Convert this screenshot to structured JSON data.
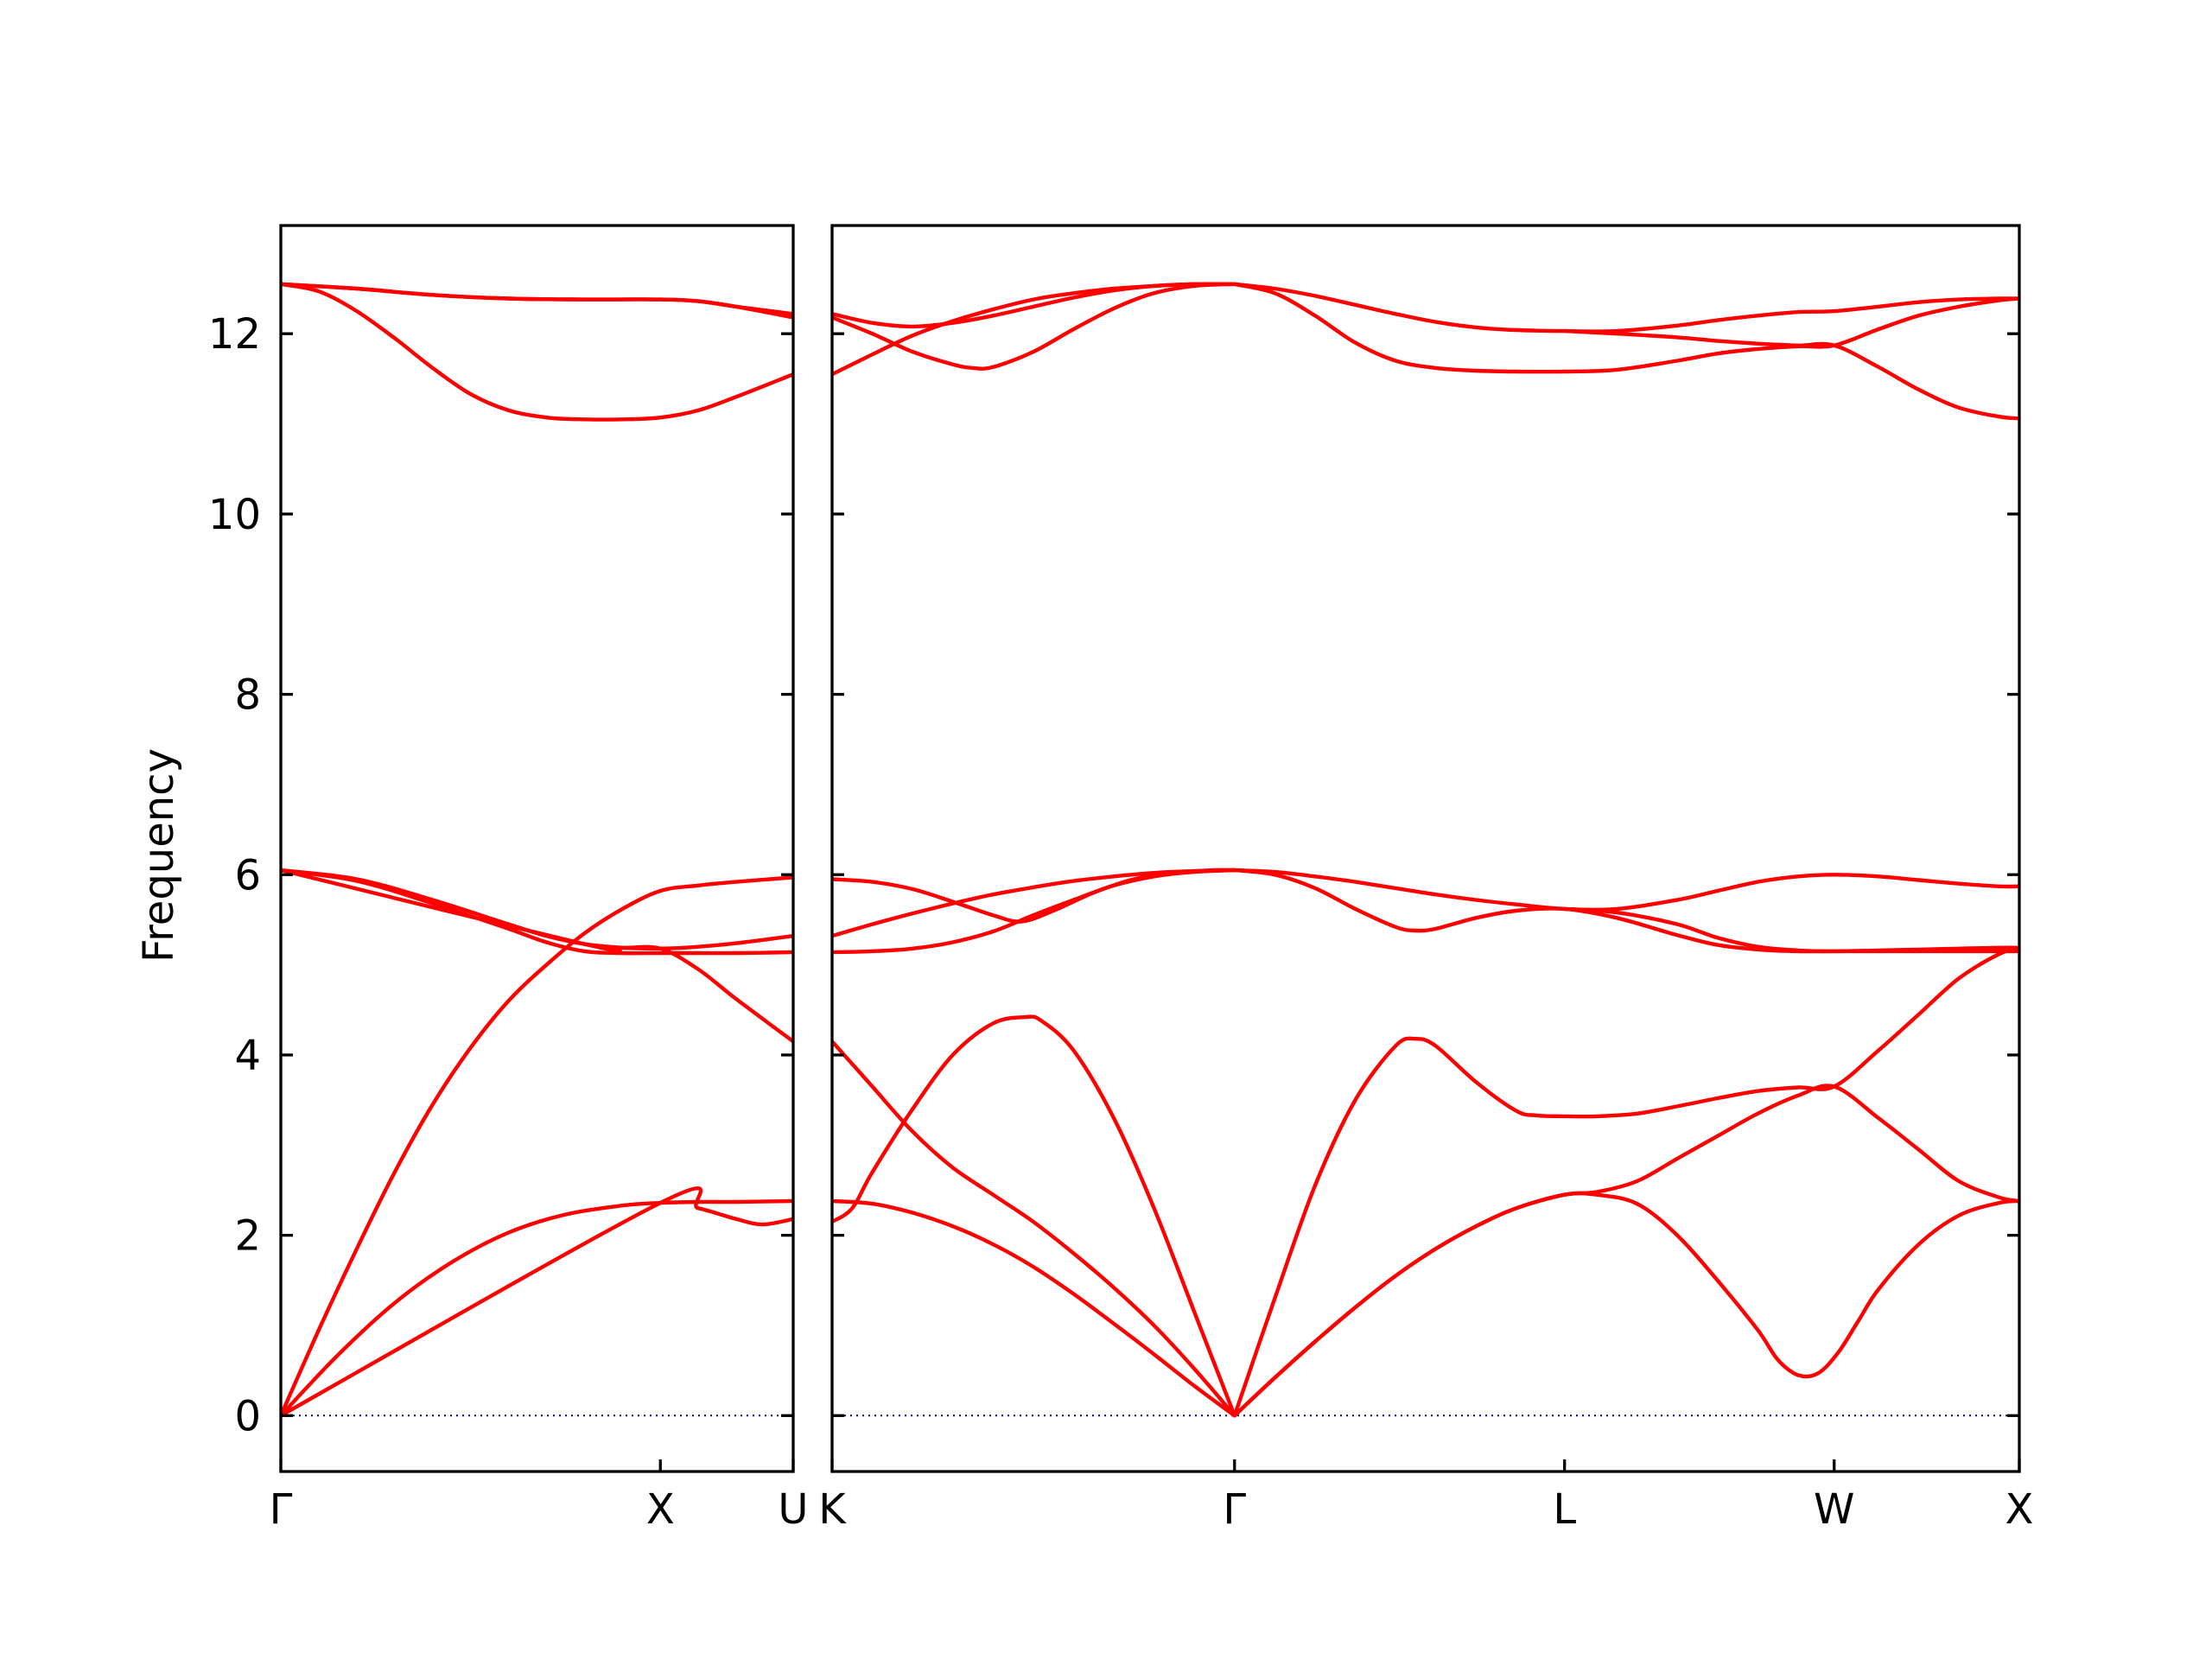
{
  "chart_data": {
    "type": "line",
    "ylabel": "Frequency",
    "ylim": [
      -0.62,
      13.2
    ],
    "yticks": [
      0,
      2,
      4,
      6,
      8,
      10,
      12
    ],
    "grid": false,
    "legend": "none",
    "colors": {
      "bands": "#ff0000",
      "zero_line": "#00008b",
      "frame": "#000000"
    },
    "panels": [
      {
        "name": "panel-gamma-x-u",
        "xlim": [
          0,
          1.35
        ],
        "xticks": [
          {
            "x": 0.0,
            "label": "Γ",
            "align": "start"
          },
          {
            "x": 1.0,
            "label": "X",
            "align": "middle"
          },
          {
            "x": 1.35,
            "label": "U",
            "align": "end"
          }
        ],
        "bands": [
          {
            "x": [
              0,
              0.15,
              0.3,
              0.45,
              0.6,
              0.75,
              0.9,
              1.0,
              1.1,
              1.2,
              1.35
            ],
            "y": [
              0.0,
              0.67,
              1.25,
              1.7,
              2.03,
              2.23,
              2.33,
              2.36,
              2.37,
              2.37,
              2.38
            ]
          },
          {
            "x": [
              0,
              1.0,
              1.1,
              1.2,
              1.27,
              1.35
            ],
            "y": [
              0.0,
              2.36,
              2.3,
              2.18,
              2.12,
              2.18
            ]
          },
          {
            "x": [
              0,
              0.1,
              0.2,
              0.3,
              0.4,
              0.5,
              0.6,
              0.7,
              0.8,
              0.9,
              1.0,
              1.1,
              1.2,
              1.35
            ],
            "y": [
              0.0,
              0.95,
              1.85,
              2.7,
              3.45,
              4.08,
              4.6,
              5.0,
              5.35,
              5.62,
              5.82,
              5.88,
              5.92,
              5.97
            ]
          },
          {
            "x": [
              0,
              0.2,
              0.4,
              0.6,
              0.7,
              0.8,
              0.9,
              1.0,
              1.1,
              1.2,
              1.35
            ],
            "y": [
              6.05,
              5.95,
              5.72,
              5.45,
              5.32,
              5.23,
              5.19,
              5.18,
              5.2,
              5.24,
              5.32
            ]
          },
          {
            "x": [
              0,
              0.2,
              0.4,
              0.6,
              0.7,
              0.8,
              0.9,
              1.0,
              1.1,
              1.2,
              1.35
            ],
            "y": [
              6.05,
              5.93,
              5.68,
              5.4,
              5.25,
              5.15,
              5.13,
              5.13,
              5.13,
              5.13,
              5.14
            ]
          },
          {
            "x": [
              0,
              0.8,
              0.9,
              1.0,
              1.1,
              1.2,
              1.35
            ],
            "y": [
              6.05,
              5.23,
              5.19,
              5.18,
              4.95,
              4.62,
              4.15
            ]
          },
          {
            "x": [
              0,
              0.1,
              0.2,
              0.3,
              0.4,
              0.5,
              0.6,
              0.7,
              0.8,
              0.9,
              1.0,
              1.1,
              1.2,
              1.35
            ],
            "y": [
              12.55,
              12.47,
              12.25,
              11.95,
              11.62,
              11.33,
              11.15,
              11.07,
              11.05,
              11.05,
              11.07,
              11.15,
              11.3,
              11.55
            ]
          },
          {
            "x": [
              0,
              0.2,
              0.4,
              0.6,
              0.8,
              1.0,
              1.1,
              1.2,
              1.35
            ],
            "y": [
              12.55,
              12.5,
              12.43,
              12.39,
              12.38,
              12.38,
              12.36,
              12.3,
              12.18
            ]
          },
          {
            "x": [
              0,
              0.2,
              0.4,
              0.6,
              0.8,
              1.0,
              1.1,
              1.2,
              1.35
            ],
            "y": [
              12.55,
              12.5,
              12.43,
              12.39,
              12.38,
              12.38,
              12.36,
              12.3,
              12.22
            ]
          }
        ]
      },
      {
        "name": "panel-k-gamma-l-w-x",
        "xlim": [
          0,
          2.95
        ],
        "xticks": [
          {
            "x": 0.0,
            "label": "K",
            "align": "start"
          },
          {
            "x": 1.0,
            "label": "Γ",
            "align": "middle"
          },
          {
            "x": 1.82,
            "label": "L",
            "align": "middle"
          },
          {
            "x": 2.49,
            "label": "W",
            "align": "middle"
          },
          {
            "x": 2.95,
            "label": "X",
            "align": "end"
          }
        ],
        "bands": [
          {
            "x": [
              0,
              0.1,
              0.2,
              0.3,
              0.4,
              0.5,
              0.6,
              0.7,
              0.8,
              0.9,
              1.0
            ],
            "y": [
              2.38,
              2.35,
              2.25,
              2.1,
              1.9,
              1.65,
              1.35,
              1.02,
              0.68,
              0.33,
              0.0
            ]
          },
          {
            "x": [
              0,
              0.1,
              0.2,
              0.3,
              0.4,
              0.5,
              0.6,
              0.7,
              0.8,
              0.9,
              1.0
            ],
            "y": [
              4.15,
              3.65,
              3.15,
              2.75,
              2.45,
              2.15,
              1.8,
              1.42,
              1.0,
              0.52,
              0.0
            ]
          },
          {
            "x": [
              0,
              0.05,
              0.1,
              0.2,
              0.3,
              0.4,
              0.48,
              0.52,
              0.6,
              0.7,
              0.8,
              0.9,
              1.0
            ],
            "y": [
              2.15,
              2.3,
              2.7,
              3.4,
              4.0,
              4.35,
              4.42,
              4.38,
              4.05,
              3.3,
              2.3,
              1.15,
              0.0
            ]
          },
          {
            "x": [
              1.0,
              1.1,
              1.2,
              1.3,
              1.4,
              1.5,
              1.6,
              1.7,
              1.82,
              1.9,
              2.0,
              2.1,
              2.2,
              2.3,
              2.4,
              2.49,
              2.6,
              2.7,
              2.8,
              2.9,
              2.95
            ],
            "y": [
              0.0,
              0.42,
              0.82,
              1.2,
              1.55,
              1.85,
              2.1,
              2.3,
              2.45,
              2.48,
              2.6,
              2.85,
              3.1,
              3.35,
              3.55,
              3.65,
              3.3,
              2.95,
              2.6,
              2.42,
              2.38
            ]
          },
          {
            "x": [
              1.0,
              1.1,
              1.2,
              1.3,
              1.4,
              1.5,
              1.6,
              1.7,
              1.82,
              1.9,
              2.0,
              2.1,
              2.2,
              2.3,
              2.35,
              2.4,
              2.45,
              2.5,
              2.55,
              2.6,
              2.7,
              2.8,
              2.9,
              2.95
            ],
            "y": [
              0.0,
              0.42,
              0.82,
              1.2,
              1.55,
              1.85,
              2.1,
              2.3,
              2.45,
              2.45,
              2.35,
              2.0,
              1.5,
              0.95,
              0.62,
              0.45,
              0.47,
              0.7,
              1.05,
              1.4,
              1.9,
              2.22,
              2.36,
              2.38
            ]
          },
          {
            "x": [
              1.0,
              1.1,
              1.2,
              1.3,
              1.4,
              1.45,
              1.5,
              1.6,
              1.7,
              1.75,
              1.82,
              1.9,
              2.0,
              2.1,
              2.2,
              2.3,
              2.4,
              2.49,
              2.6,
              2.7,
              2.8,
              2.9,
              2.95
            ],
            "y": [
              0.0,
              1.3,
              2.55,
              3.5,
              4.1,
              4.18,
              4.1,
              3.7,
              3.38,
              3.33,
              3.32,
              3.32,
              3.35,
              3.43,
              3.52,
              3.6,
              3.64,
              3.65,
              4.05,
              4.45,
              4.85,
              5.12,
              5.18
            ]
          },
          {
            "x": [
              0,
              0.1,
              0.2,
              0.3,
              0.4,
              0.5,
              0.6,
              0.7,
              0.8,
              0.9,
              1.0
            ],
            "y": [
              5.14,
              5.15,
              5.18,
              5.25,
              5.37,
              5.55,
              5.72,
              5.88,
              5.98,
              6.03,
              6.05
            ]
          },
          {
            "x": [
              0,
              0.1,
              0.2,
              0.3,
              0.4,
              0.5,
              0.6,
              0.7,
              0.8,
              0.9,
              1.0
            ],
            "y": [
              5.32,
              5.45,
              5.57,
              5.68,
              5.78,
              5.86,
              5.93,
              5.98,
              6.02,
              6.04,
              6.05
            ]
          },
          {
            "x": [
              0,
              0.1,
              0.2,
              0.3,
              0.4,
              0.47,
              0.55,
              0.65,
              0.75,
              0.85,
              0.95,
              1.0
            ],
            "y": [
              5.95,
              5.92,
              5.84,
              5.7,
              5.55,
              5.48,
              5.6,
              5.8,
              5.95,
              6.02,
              6.05,
              6.05
            ]
          },
          {
            "x": [
              1.0,
              1.1,
              1.2,
              1.3,
              1.4,
              1.5,
              1.6,
              1.7,
              1.82,
              1.95,
              2.1,
              2.2,
              2.3,
              2.4,
              2.49,
              2.6,
              2.7,
              2.8,
              2.9,
              2.95
            ],
            "y": [
              6.05,
              6.03,
              5.98,
              5.92,
              5.85,
              5.78,
              5.72,
              5.67,
              5.62,
              5.62,
              5.72,
              5.82,
              5.92,
              5.98,
              6.0,
              5.98,
              5.94,
              5.9,
              5.87,
              5.87
            ]
          },
          {
            "x": [
              1.0,
              1.1,
              1.2,
              1.3,
              1.4,
              1.45,
              1.5,
              1.6,
              1.7,
              1.82,
              1.95,
              2.1,
              2.2,
              2.3,
              2.4,
              2.49,
              2.6,
              2.7,
              2.8,
              2.9,
              2.95
            ],
            "y": [
              6.05,
              6.0,
              5.85,
              5.62,
              5.42,
              5.38,
              5.4,
              5.52,
              5.6,
              5.62,
              5.52,
              5.33,
              5.22,
              5.17,
              5.15,
              5.15,
              5.15,
              5.15,
              5.15,
              5.15,
              5.15
            ]
          },
          {
            "x": [
              1.82,
              1.95,
              2.1,
              2.2,
              2.3,
              2.4,
              2.49,
              2.6,
              2.7,
              2.8,
              2.9,
              2.95
            ],
            "y": [
              5.62,
              5.58,
              5.45,
              5.3,
              5.2,
              5.16,
              5.15,
              5.16,
              5.17,
              5.18,
              5.19,
              5.19
            ]
          },
          {
            "x": [
              0,
              0.1,
              0.2,
              0.3,
              0.4,
              0.5,
              0.6,
              0.7,
              0.8,
              0.9,
              1.0
            ],
            "y": [
              11.55,
              11.77,
              11.98,
              12.14,
              12.27,
              12.38,
              12.45,
              12.5,
              12.53,
              12.55,
              12.55
            ]
          },
          {
            "x": [
              0,
              0.1,
              0.2,
              0.3,
              0.4,
              0.5,
              0.6,
              0.7,
              0.8,
              0.9,
              1.0
            ],
            "y": [
              12.22,
              12.12,
              12.08,
              12.12,
              12.2,
              12.3,
              12.4,
              12.48,
              12.53,
              12.55,
              12.55
            ]
          },
          {
            "x": [
              0,
              0.1,
              0.2,
              0.3,
              0.35,
              0.4,
              0.5,
              0.6,
              0.7,
              0.8,
              0.9,
              1.0
            ],
            "y": [
              12.18,
              12.0,
              11.8,
              11.66,
              11.62,
              11.63,
              11.8,
              12.05,
              12.28,
              12.45,
              12.53,
              12.55
            ]
          },
          {
            "x": [
              1.0,
              1.1,
              1.2,
              1.3,
              1.4,
              1.5,
              1.6,
              1.7,
              1.82,
              1.95,
              2.1,
              2.2,
              2.3,
              2.4,
              2.49,
              2.6,
              2.7,
              2.8,
              2.9,
              2.95
            ],
            "y": [
              12.55,
              12.5,
              12.42,
              12.32,
              12.22,
              12.13,
              12.07,
              12.04,
              12.03,
              12.03,
              12.09,
              12.15,
              12.2,
              12.24,
              12.25,
              12.3,
              12.35,
              12.38,
              12.39,
              12.39
            ]
          },
          {
            "x": [
              1.0,
              1.1,
              1.2,
              1.3,
              1.4,
              1.5,
              1.6,
              1.7,
              1.82,
              1.95,
              2.1,
              2.2,
              2.3,
              2.4,
              2.49,
              2.6,
              2.7,
              2.8,
              2.9,
              2.95
            ],
            "y": [
              12.55,
              12.45,
              12.2,
              11.9,
              11.7,
              11.62,
              11.59,
              11.58,
              11.58,
              11.6,
              11.7,
              11.78,
              11.83,
              11.86,
              11.87,
              12.05,
              12.2,
              12.3,
              12.37,
              12.39
            ]
          },
          {
            "x": [
              1.82,
              1.95,
              2.1,
              2.2,
              2.3,
              2.4,
              2.49,
              2.6,
              2.7,
              2.8,
              2.9,
              2.95
            ],
            "y": [
              12.03,
              12.0,
              11.96,
              11.92,
              11.89,
              11.87,
              11.87,
              11.63,
              11.38,
              11.18,
              11.08,
              11.06
            ]
          }
        ]
      }
    ]
  }
}
